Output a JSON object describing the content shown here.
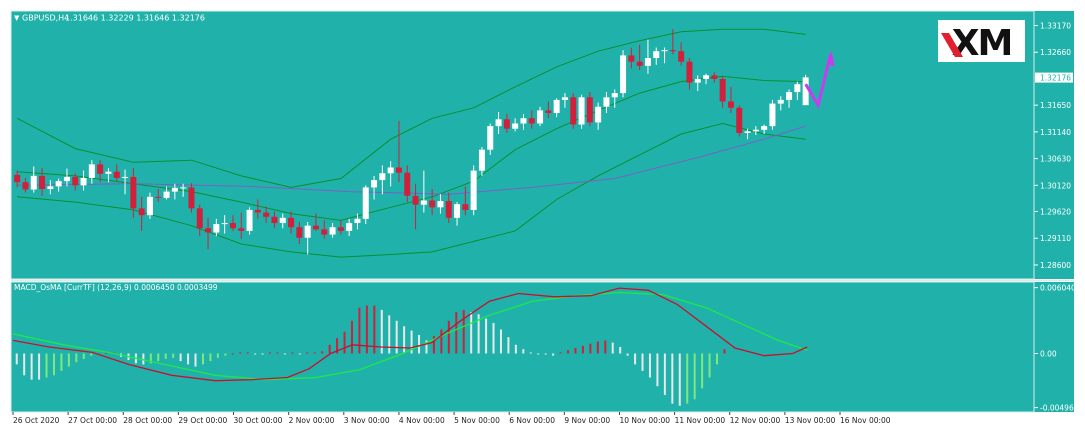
{
  "header": {
    "symbol_label": "GBPUSD,H4",
    "ohlc_label": "1.31646 1.32229 1.31646 1.32176"
  },
  "indicator": {
    "label": "MACD_OsMA [CurrTF] (12,26,9) 0.0006450 0.0003499"
  },
  "logo": {
    "text": "XM"
  },
  "chart_data": [
    {
      "type": "candlestick",
      "symbol": "GBPUSD",
      "timeframe": "H4",
      "x_labels": [
        "26 Oct 2020",
        "27 Oct 00:00",
        "28 Oct 00:00",
        "29 Oct 00:00",
        "30 Oct 00:00",
        "2 Nov 00:00",
        "3 Nov 00:00",
        "4 Nov 00:00",
        "5 Nov 00:00",
        "6 Nov 00:00",
        "9 Nov 00:00",
        "10 Nov 00:00",
        "11 Nov 00:00",
        "12 Nov 00:00",
        "13 Nov 00:00",
        "16 Nov 00:00"
      ],
      "y_ticks": [
        "1.33170",
        "1.32660",
        "1.31650",
        "1.31140",
        "1.30630",
        "1.30120",
        "1.29620",
        "1.29110",
        "1.28600"
      ],
      "current_price": "1.32176",
      "ylim": [
        1.2837,
        1.3339
      ],
      "candles": [
        [
          1.3032,
          1.304,
          1.3008,
          1.3018
        ],
        [
          1.3018,
          1.3026,
          1.2998,
          1.3004
        ],
        [
          1.3004,
          1.3048,
          1.2998,
          1.303
        ],
        [
          1.303,
          1.3045,
          1.2992,
          1.3005
        ],
        [
          1.3005,
          1.3022,
          1.2995,
          1.301
        ],
        [
          1.301,
          1.3025,
          1.3,
          1.302
        ],
        [
          1.302,
          1.3044,
          1.301,
          1.3028
        ],
        [
          1.3028,
          1.3035,
          1.3002,
          1.3012
        ],
        [
          1.3012,
          1.304,
          1.3002,
          1.3026
        ],
        [
          1.3026,
          1.306,
          1.3015,
          1.3052
        ],
        [
          1.3052,
          1.306,
          1.3018,
          1.3034
        ],
        [
          1.3034,
          1.3045,
          1.3018,
          1.3038
        ],
        [
          1.3038,
          1.3052,
          1.302,
          1.3026
        ],
        [
          1.3026,
          1.3042,
          1.2995,
          1.3028
        ],
        [
          1.3028,
          1.3045,
          1.295,
          1.2968
        ],
        [
          1.2968,
          1.299,
          1.2925,
          1.2955
        ],
        [
          1.2955,
          1.2998,
          1.2948,
          1.299
        ],
        [
          1.299,
          1.3005,
          1.298,
          1.2988
        ],
        [
          1.2988,
          1.301,
          1.2985,
          1.3
        ],
        [
          1.3,
          1.3015,
          1.2985,
          1.3007
        ],
        [
          1.3007,
          1.3015,
          1.299,
          1.3008
        ],
        [
          1.3008,
          1.3016,
          1.296,
          1.2968
        ],
        [
          1.2968,
          1.2975,
          1.2915,
          1.293
        ],
        [
          1.293,
          1.295,
          1.289,
          1.2922
        ],
        [
          1.2922,
          1.2948,
          1.2915,
          1.2938
        ],
        [
          1.2938,
          1.2955,
          1.292,
          1.294
        ],
        [
          1.294,
          1.2955,
          1.2925,
          1.293
        ],
        [
          1.293,
          1.296,
          1.291,
          1.2925
        ],
        [
          1.2925,
          1.297,
          1.2918,
          1.2965
        ],
        [
          1.2965,
          1.2985,
          1.2948,
          1.296
        ],
        [
          1.296,
          1.2972,
          1.294,
          1.2952
        ],
        [
          1.2952,
          1.2962,
          1.293,
          1.294
        ],
        [
          1.294,
          1.2958,
          1.293,
          1.295
        ],
        [
          1.295,
          1.2962,
          1.292,
          1.2932
        ],
        [
          1.2932,
          1.2942,
          1.29,
          1.2912
        ],
        [
          1.2912,
          1.2942,
          1.288,
          1.2935
        ],
        [
          1.2935,
          1.2958,
          1.2925,
          1.2928
        ],
        [
          1.2928,
          1.2945,
          1.291,
          1.2918
        ],
        [
          1.2918,
          1.294,
          1.2912,
          1.2932
        ],
        [
          1.2932,
          1.2945,
          1.2918,
          1.2925
        ],
        [
          1.2925,
          1.2948,
          1.2915,
          1.294
        ],
        [
          1.294,
          1.2958,
          1.2928,
          1.2948
        ],
        [
          1.2948,
          1.3012,
          1.2938,
          1.3008
        ],
        [
          1.3008,
          1.303,
          1.2985,
          1.3022
        ],
        [
          1.3022,
          1.305,
          1.2995,
          1.3035
        ],
        [
          1.3035,
          1.3058,
          1.301,
          1.3046
        ],
        [
          1.3046,
          1.3135,
          1.3018,
          1.3036
        ],
        [
          1.3036,
          1.305,
          1.298,
          1.2992
        ],
        [
          1.2992,
          1.3015,
          1.2928,
          1.2975
        ],
        [
          1.2975,
          1.304,
          1.296,
          1.2983
        ],
        [
          1.2983,
          1.3005,
          1.2955,
          1.297
        ],
        [
          1.297,
          1.2995,
          1.2958,
          1.2982
        ],
        [
          1.2982,
          1.2998,
          1.294,
          1.295
        ],
        [
          1.295,
          1.298,
          1.2935,
          1.2976
        ],
        [
          1.2976,
          1.301,
          1.2955,
          1.2965
        ],
        [
          1.2965,
          1.305,
          1.2955,
          1.304
        ],
        [
          1.304,
          1.3085,
          1.303,
          1.308
        ],
        [
          1.308,
          1.313,
          1.307,
          1.3125
        ],
        [
          1.3125,
          1.3152,
          1.311,
          1.3138
        ],
        [
          1.3138,
          1.3148,
          1.3112,
          1.312
        ],
        [
          1.312,
          1.314,
          1.3115,
          1.313
        ],
        [
          1.313,
          1.3148,
          1.3118,
          1.314
        ],
        [
          1.314,
          1.3155,
          1.312,
          1.313
        ],
        [
          1.313,
          1.3162,
          1.3125,
          1.3155
        ],
        [
          1.3155,
          1.3172,
          1.314,
          1.315
        ],
        [
          1.315,
          1.3178,
          1.3142,
          1.3175
        ],
        [
          1.3175,
          1.3188,
          1.316,
          1.318
        ],
        [
          1.318,
          1.3188,
          1.312,
          1.3128
        ],
        [
          1.3128,
          1.3185,
          1.312,
          1.318
        ],
        [
          1.318,
          1.319,
          1.3125,
          1.3132
        ],
        [
          1.3132,
          1.317,
          1.3118,
          1.3162
        ],
        [
          1.3162,
          1.319,
          1.315,
          1.318
        ],
        [
          1.318,
          1.3195,
          1.316,
          1.3188
        ],
        [
          1.3188,
          1.327,
          1.318,
          1.326
        ],
        [
          1.326,
          1.3275,
          1.3235,
          1.3248
        ],
        [
          1.3248,
          1.328,
          1.3232,
          1.324
        ],
        [
          1.324,
          1.329,
          1.3225,
          1.3255
        ],
        [
          1.3255,
          1.3275,
          1.3242,
          1.3268
        ],
        [
          1.3268,
          1.3275,
          1.3245,
          1.327
        ],
        [
          1.327,
          1.331,
          1.3262,
          1.3268
        ],
        [
          1.3268,
          1.3285,
          1.324,
          1.3248
        ],
        [
          1.3248,
          1.3255,
          1.3195,
          1.3208
        ],
        [
          1.3208,
          1.3222,
          1.3192,
          1.3215
        ],
        [
          1.3215,
          1.3225,
          1.3205,
          1.3222
        ],
        [
          1.3222,
          1.3228,
          1.3208,
          1.3215
        ],
        [
          1.3215,
          1.322,
          1.316,
          1.3172
        ],
        [
          1.3172,
          1.32,
          1.315,
          1.316
        ],
        [
          1.316,
          1.3165,
          1.3105,
          1.3112
        ],
        [
          1.3112,
          1.312,
          1.31,
          1.3115
        ],
        [
          1.3115,
          1.3125,
          1.3108,
          1.3118
        ],
        [
          1.3118,
          1.3128,
          1.311,
          1.3125
        ],
        [
          1.3125,
          1.3175,
          1.3118,
          1.3168
        ],
        [
          1.3168,
          1.3182,
          1.3155,
          1.3175
        ],
        [
          1.3175,
          1.3195,
          1.316,
          1.319
        ],
        [
          1.319,
          1.321,
          1.3175,
          1.3205
        ],
        [
          1.3165,
          1.3223,
          1.3165,
          1.3218
        ]
      ],
      "bollinger_upper": [
        [
          0,
          1.314
        ],
        [
          7,
          1.3082
        ],
        [
          14,
          1.3056
        ],
        [
          21,
          1.306
        ],
        [
          27,
          1.303
        ],
        [
          33,
          1.3008
        ],
        [
          39,
          1.3025
        ],
        [
          45,
          1.31
        ],
        [
          50,
          1.314
        ],
        [
          55,
          1.316
        ],
        [
          60,
          1.32
        ],
        [
          65,
          1.3238
        ],
        [
          70,
          1.3268
        ],
        [
          75,
          1.3288
        ],
        [
          80,
          1.3305
        ],
        [
          85,
          1.331
        ],
        [
          90,
          1.331
        ],
        [
          95,
          1.33
        ]
      ],
      "bollinger_middle": [
        [
          0,
          1.3038
        ],
        [
          7,
          1.303
        ],
        [
          14,
          1.3015
        ],
        [
          21,
          1.3
        ],
        [
          27,
          1.298
        ],
        [
          33,
          1.2958
        ],
        [
          39,
          1.2945
        ],
        [
          45,
          1.297
        ],
        [
          50,
          1.299
        ],
        [
          55,
          1.302
        ],
        [
          60,
          1.308
        ],
        [
          65,
          1.312
        ],
        [
          70,
          1.3155
        ],
        [
          75,
          1.3188
        ],
        [
          80,
          1.321
        ],
        [
          85,
          1.322
        ],
        [
          90,
          1.3212
        ],
        [
          95,
          1.321
        ]
      ],
      "bollinger_lower": [
        [
          0,
          1.299
        ],
        [
          7,
          1.298
        ],
        [
          14,
          1.2965
        ],
        [
          21,
          1.2935
        ],
        [
          27,
          1.29
        ],
        [
          33,
          1.2885
        ],
        [
          39,
          1.2875
        ],
        [
          45,
          1.288
        ],
        [
          50,
          1.2885
        ],
        [
          55,
          1.2905
        ],
        [
          60,
          1.2925
        ],
        [
          65,
          1.2985
        ],
        [
          70,
          1.303
        ],
        [
          75,
          1.307
        ],
        [
          80,
          1.311
        ],
        [
          85,
          1.313
        ],
        [
          90,
          1.311
        ],
        [
          95,
          1.31
        ]
      ],
      "moving_average": [
        [
          0,
          1.3012
        ],
        [
          14,
          1.3015
        ],
        [
          28,
          1.301
        ],
        [
          40,
          1.3
        ],
        [
          52,
          1.2995
        ],
        [
          62,
          1.3008
        ],
        [
          72,
          1.3025
        ],
        [
          82,
          1.3065
        ],
        [
          90,
          1.31
        ],
        [
          95,
          1.3125
        ]
      ],
      "arrow": [
        [
          95,
          1.3205
        ],
        [
          96.5,
          1.3165
        ],
        [
          98,
          1.3262
        ]
      ]
    },
    {
      "type": "macd_histogram",
      "title": "MACD_OsMA [CurrTF] (12,26,9) 0.0006450 0.0003499",
      "y_ticks": [
        "0.006040",
        "0.00",
        "-0.004962"
      ],
      "ylim": [
        -0.005,
        0.0061
      ],
      "histogram": [
        -0.001,
        -0.002,
        -0.0024,
        -0.0024,
        -0.0022,
        -0.002,
        -0.0016,
        -0.0012,
        -0.0008,
        -0.0005,
        -0.0002,
        0,
        0.0001,
        0.0001,
        -0.0003,
        -0.0006,
        -0.0009,
        -0.001,
        -0.0009,
        -0.0007,
        -0.0005,
        -0.0004,
        -0.0007,
        -0.001,
        -0.0012,
        -0.001,
        -0.0007,
        -0.0004,
        -0.0002,
        0,
        0.0001,
        0.0001,
        0,
        -0.0001,
        0.0001,
        0.0001,
        0,
        0.0001,
        0,
        0.0001,
        0.0001,
        0.0002,
        0.0008,
        0.0014,
        0.002,
        0.003,
        0.0042,
        0.0044,
        0.0044,
        0.004,
        0.0035,
        0.003,
        0.0025,
        0.0021,
        0.0017,
        0.0012,
        0.0016,
        0.0022,
        0.003,
        0.0038,
        0.004,
        0.0038,
        0.0036,
        0.0032,
        0.0028,
        0.0022,
        0.0015,
        0.0008,
        0.0004,
        0.0001,
        0,
        -0.0001,
        -0.0002,
        0.0001,
        0.0003,
        0.0005,
        0.0007,
        0.0009,
        0.0011,
        0.0012,
        0.001,
        0.0006,
        -0.0002,
        -0.001,
        -0.0016,
        -0.0022,
        -0.003,
        -0.0038,
        -0.0046,
        -0.0048,
        -0.0046,
        -0.0042,
        -0.0032,
        -0.0022,
        -0.001,
        0.0004
      ],
      "macd_line": [
        [
          0,
          0.0012
        ],
        [
          5,
          0.0006
        ],
        [
          11,
          0.0001
        ],
        [
          16,
          -0.001
        ],
        [
          22,
          -0.002
        ],
        [
          28,
          -0.0025
        ],
        [
          33,
          -0.0024
        ],
        [
          38,
          -0.0022
        ],
        [
          41,
          -0.0014
        ],
        [
          44,
          0
        ],
        [
          47,
          0.0008
        ],
        [
          51,
          0.0006
        ],
        [
          55,
          0.0005
        ],
        [
          58,
          0.001
        ],
        [
          62,
          0.003
        ],
        [
          66,
          0.0048
        ],
        [
          70,
          0.0055
        ],
        [
          75,
          0.0052
        ],
        [
          80,
          0.0053
        ],
        [
          84,
          0.006
        ],
        [
          88,
          0.0058
        ],
        [
          92,
          0.0045
        ],
        [
          96,
          0.0025
        ],
        [
          100,
          0.0005
        ],
        [
          104,
          -0.0002
        ],
        [
          108,
          0
        ],
        [
          110,
          0.0006
        ]
      ],
      "signal_line": [
        [
          0,
          0.0018
        ],
        [
          7,
          0.0008
        ],
        [
          14,
          0
        ],
        [
          21,
          -0.001
        ],
        [
          28,
          -0.002
        ],
        [
          35,
          -0.0024
        ],
        [
          42,
          -0.0022
        ],
        [
          48,
          -0.0015
        ],
        [
          54,
          0
        ],
        [
          60,
          0.0018
        ],
        [
          66,
          0.0035
        ],
        [
          72,
          0.0048
        ],
        [
          78,
          0.0053
        ],
        [
          84,
          0.0056
        ],
        [
          90,
          0.0054
        ],
        [
          96,
          0.0042
        ],
        [
          102,
          0.0024
        ],
        [
          106,
          0.0012
        ],
        [
          110,
          0.0003
        ]
      ]
    }
  ]
}
